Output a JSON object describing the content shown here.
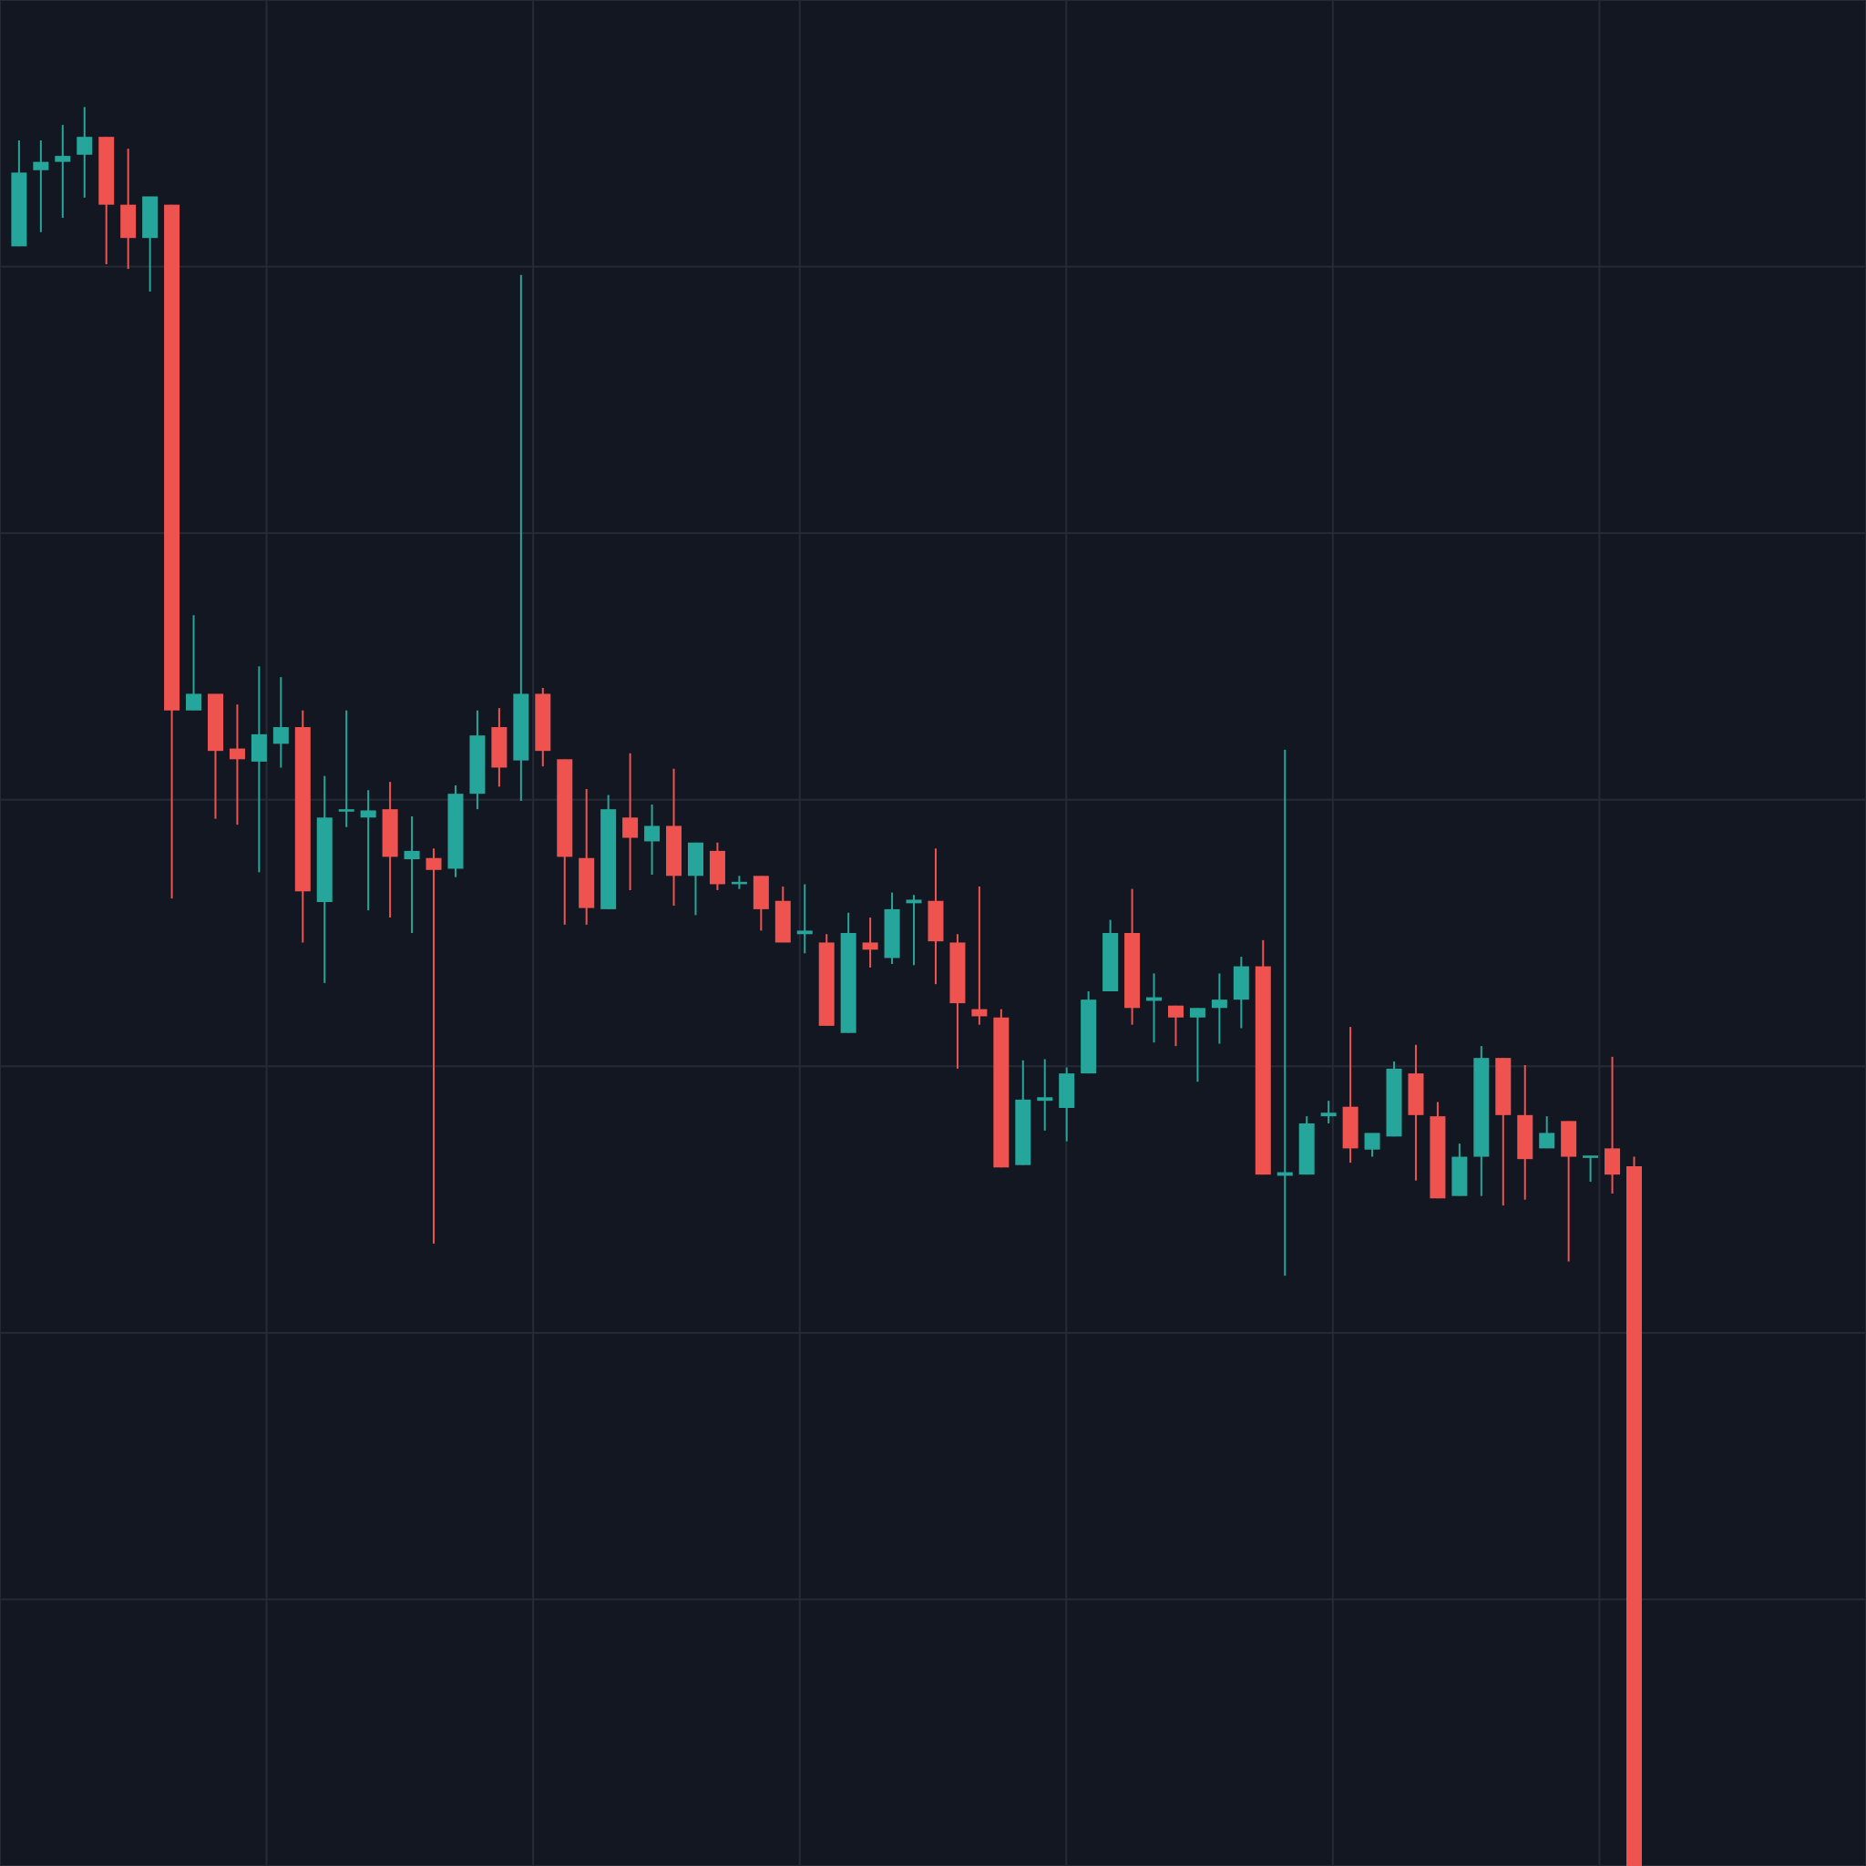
{
  "chart_data": {
    "type": "candlestick",
    "up_color": "#26a69a",
    "down_color": "#ef5350",
    "grid": true,
    "ylim": [
      0,
      1568
    ],
    "yticks": [
      0,
      224,
      448,
      672,
      896,
      1120,
      1344,
      1568
    ],
    "open": [
      1361,
      1425,
      1432,
      1438,
      1453,
      1396,
      1368,
      1396,
      971,
      985,
      939,
      928,
      943,
      957,
      810,
      886,
      881,
      888,
      846,
      847,
      838,
      901,
      957,
      929,
      985,
      930,
      847,
      804,
      881,
      861,
      874,
      832,
      853,
      825,
      832,
      811,
      783,
      776,
      700,
      776,
      763,
      809,
      811,
      776,
      720,
      713,
      589,
      643,
      637,
      666,
      735,
      784,
      727,
      723,
      713,
      721,
      728,
      756,
      580,
      581,
      630,
      638,
      602,
      613,
      666,
      630,
      563,
      596,
      679,
      631,
      603,
      626,
      595,
      603,
      588
    ],
    "high": [
      1450,
      1450,
      1463,
      1478,
      1453,
      1443,
      1403,
      1396,
      1051,
      985,
      976,
      1008,
      999,
      971,
      916,
      971,
      904,
      911,
      882,
      855,
      908,
      971,
      973,
      1337,
      990,
      930,
      905,
      900,
      935,
      892,
      922,
      860,
      860,
      832,
      832,
      823,
      825,
      783,
      801,
      797,
      818,
      816,
      855,
      783,
      823,
      720,
      677,
      678,
      671,
      735,
      795,
      821,
      750,
      723,
      721,
      750,
      764,
      778,
      938,
      630,
      643,
      705,
      616,
      676,
      690,
      642,
      607,
      689,
      679,
      673,
      630,
      626,
      597,
      680,
      596
    ],
    "low": [
      1361,
      1373,
      1385,
      1402,
      1346,
      1342,
      1323,
      813,
      971,
      880,
      875,
      835,
      923,
      776,
      742,
      873,
      803,
      797,
      784,
      523,
      831,
      888,
      907,
      895,
      924,
      791,
      791,
      804,
      820,
      833,
      807,
      799,
      820,
      821,
      786,
      776,
      767,
      706,
      700,
      755,
      758,
      757,
      741,
      670,
      707,
      587,
      589,
      618,
      609,
      666,
      735,
      707,
      692,
      689,
      659,
      691,
      704,
      581,
      496,
      581,
      624,
      591,
      596,
      613,
      576,
      561,
      563,
      563,
      555,
      560,
      603,
      508,
      575,
      565,
      0
    ],
    "close": [
      1423,
      1432,
      1437,
      1453,
      1396,
      1368,
      1403,
      971,
      985,
      937,
      930,
      951,
      957,
      819,
      881,
      888,
      887,
      848,
      853,
      837,
      901,
      950,
      923,
      985,
      937,
      848,
      805,
      888,
      864,
      874,
      832,
      860,
      825,
      827,
      804,
      776,
      786,
      706,
      784,
      770,
      804,
      812,
      777,
      725,
      714,
      587,
      644,
      646,
      666,
      728,
      784,
      721,
      730,
      713,
      721,
      728,
      756,
      581,
      583,
      624,
      633,
      603,
      616,
      670,
      631,
      561,
      596,
      679,
      631,
      594,
      616,
      596,
      597,
      581,
      0
    ]
  }
}
